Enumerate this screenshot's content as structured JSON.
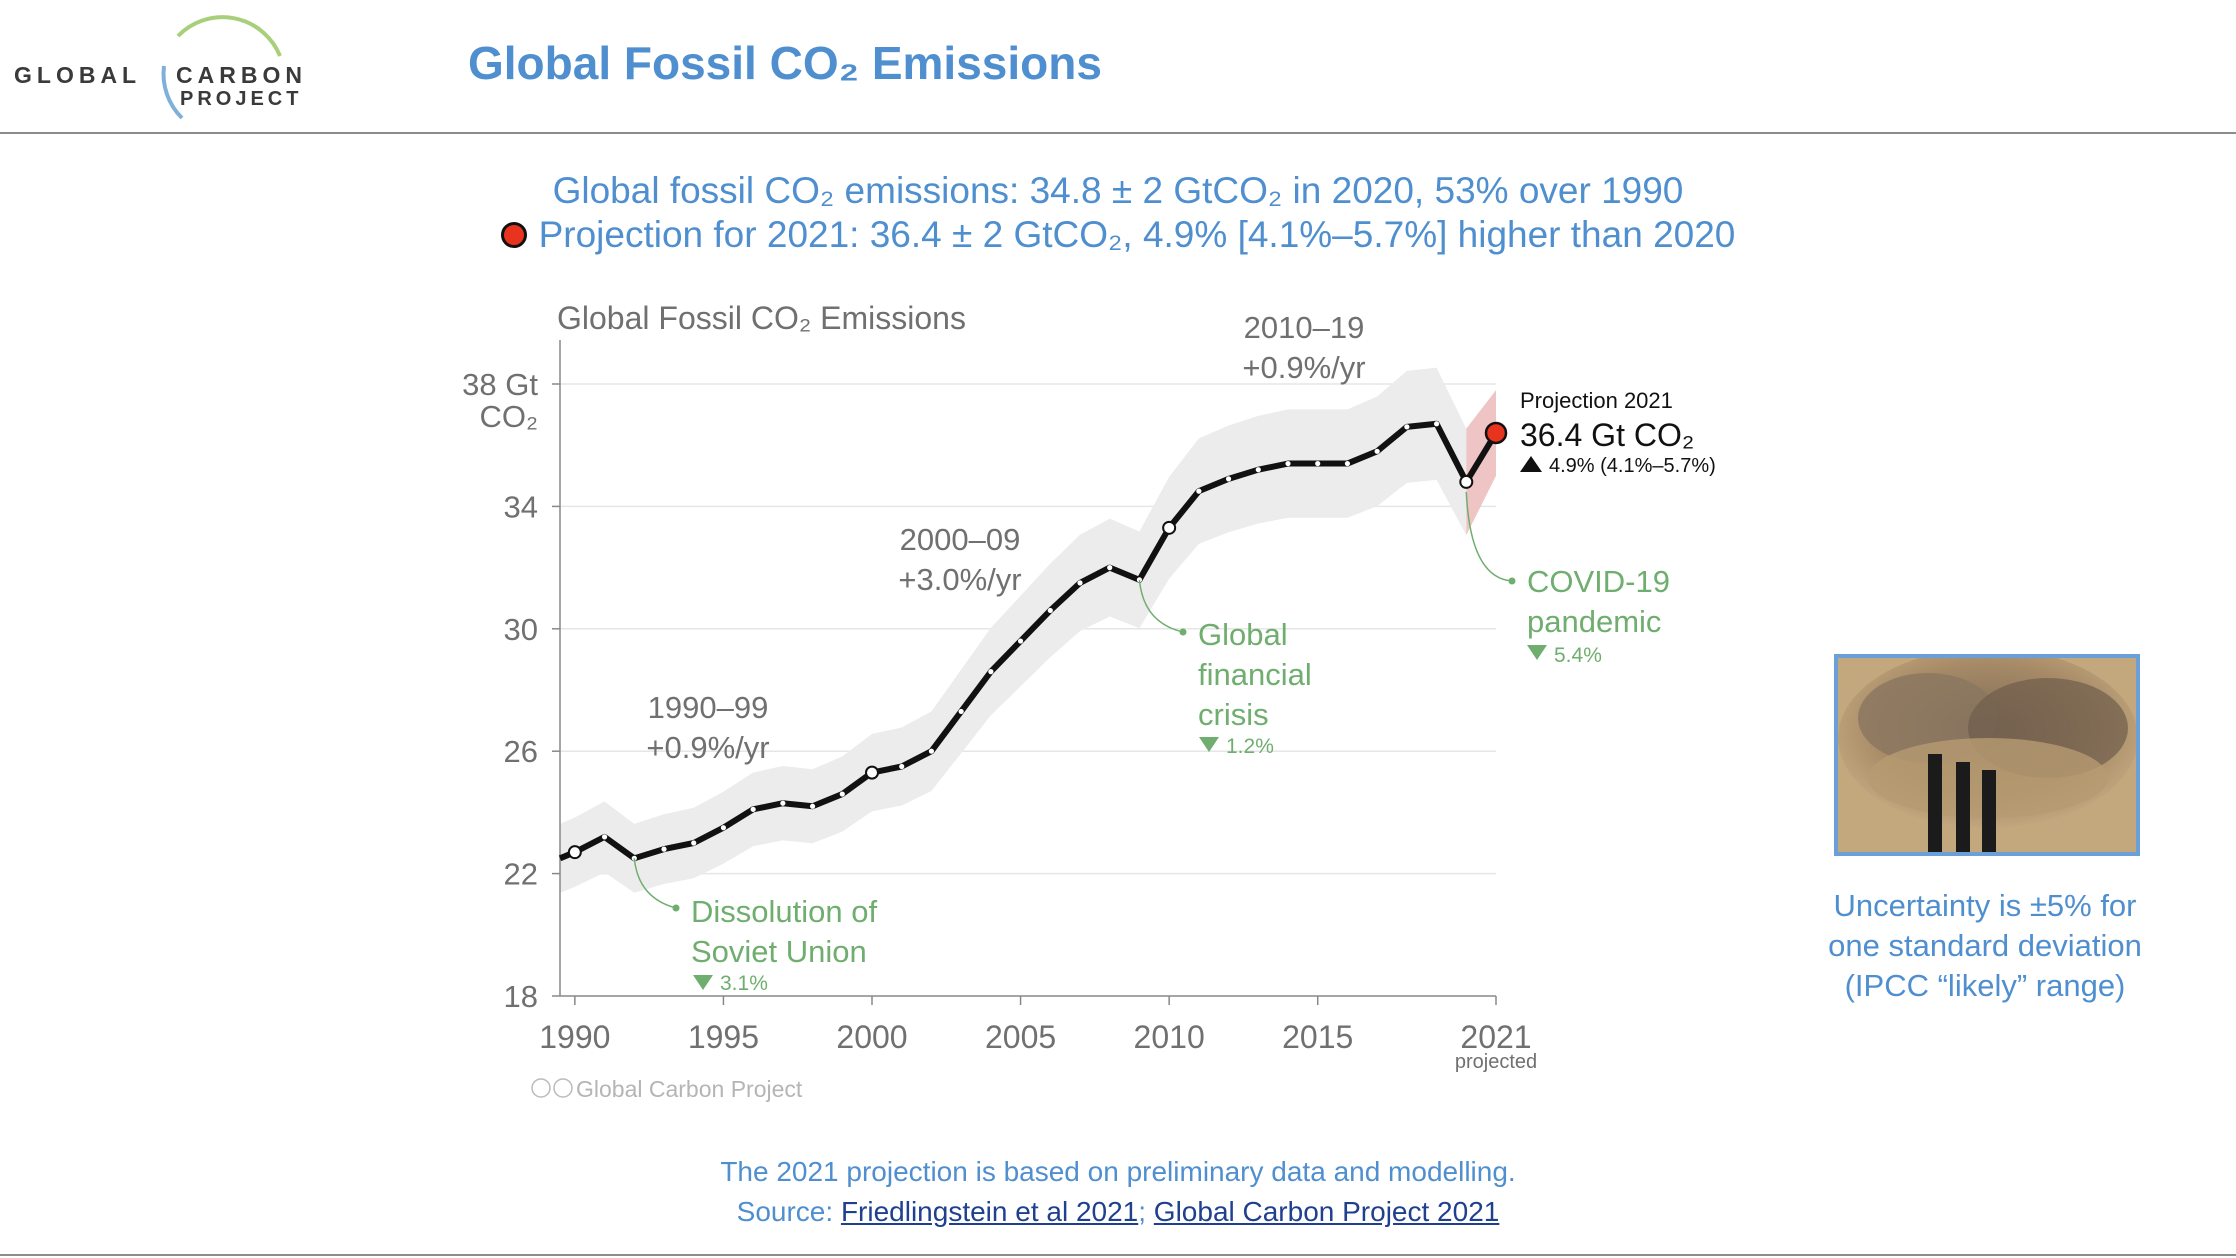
{
  "logo": {
    "word1": "GLOBAL",
    "word2": "CARBON",
    "word3": "PROJECT"
  },
  "slide_title": "Global Fossil CO₂ Emissions",
  "subtitle_line1": "Global fossil CO₂ emissions: 34.8 ± 2 GtCO₂ in 2020, 53% over 1990",
  "subtitle_line2": "Projection for 2021: 36.4 ± 2 GtCO₂, 4.9% [4.1%–5.7%] higher than 2020",
  "chart_data": {
    "type": "line",
    "title": "Global Fossil CO₂ Emissions",
    "ylabel": "Gt CO₂",
    "y_top_label_1": "38 Gt",
    "y_top_label_2": "CO₂",
    "xlim": [
      1989.5,
      2021
    ],
    "ylim": [
      18,
      38
    ],
    "yticks": [
      18,
      22,
      26,
      30,
      34
    ],
    "xticks": [
      1990,
      1995,
      2000,
      2005,
      2010,
      2015,
      2021
    ],
    "xtick_sublabel": "projected",
    "series": [
      {
        "x": [
          1989.5,
          1990,
          1991,
          1992,
          1993,
          1994,
          1995,
          1996,
          1997,
          1998,
          1999,
          2000,
          2001,
          2002,
          2003,
          2004,
          2005,
          2006,
          2007,
          2008,
          2009,
          2010,
          2011,
          2012,
          2013,
          2014,
          2015,
          2016,
          2017,
          2018,
          2019,
          2020
        ],
        "y": [
          22.5,
          22.7,
          23.2,
          22.5,
          22.8,
          23.0,
          23.5,
          24.1,
          24.3,
          24.2,
          24.6,
          25.3,
          25.5,
          26.0,
          27.3,
          28.6,
          29.6,
          30.6,
          31.5,
          32.0,
          31.6,
          33.3,
          34.5,
          34.9,
          35.2,
          35.4,
          35.4,
          35.4,
          35.8,
          36.6,
          36.7,
          34.8
        ],
        "uncertainty": "±5%"
      }
    ],
    "projection": {
      "x": 2021,
      "y": 36.4,
      "low": 35.0,
      "high": 37.8
    },
    "open_markers_x": [
      1990,
      2000,
      2010,
      2020
    ],
    "annotations": {
      "decade_1990": [
        "1990–99",
        "+0.9%/yr"
      ],
      "decade_2000": [
        "2000–09",
        "+3.0%/yr"
      ],
      "decade_2010": [
        "2010–19",
        "+0.9%/yr"
      ],
      "soviet": [
        "Dissolution of",
        "Soviet Union"
      ],
      "soviet_pct": "3.1%",
      "gfc": [
        "Global",
        "financial",
        "crisis"
      ],
      "gfc_pct": "1.2%",
      "covid": [
        "COVID-19",
        "pandemic"
      ],
      "covid_pct": "5.4%",
      "proj_label": "Projection 2021",
      "proj_value": "36.4 Gt CO₂",
      "proj_change": "4.9% (4.1%–5.7%)"
    },
    "credit": "Global Carbon Project",
    "colors": {
      "line": "#111111",
      "band": "#ececec",
      "annot": "#6fae6f",
      "proj": "#e8331e",
      "proj_band": "#eec4c4"
    }
  },
  "uncertainty_note": [
    "Uncertainty is ±5% for",
    "one standard deviation",
    "(IPCC “likely” range)"
  ],
  "footer": {
    "line1": "The 2021 projection is based on preliminary data and modelling.",
    "source_prefix": "Source: ",
    "link1": "Friedlingstein et al 2021",
    "sep": "; ",
    "link2": "Global Carbon Project 2021"
  }
}
